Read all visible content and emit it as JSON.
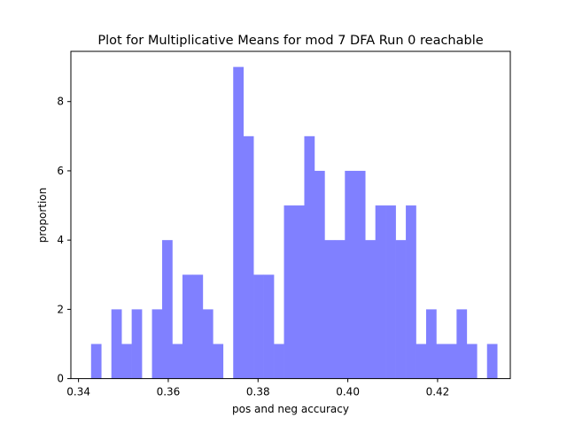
{
  "chart_data": {
    "type": "bar",
    "title": "Plot for Multiplicative Means for  mod 7  DFA Run 0  reachable",
    "xlabel": "pos and neg accuracy",
    "ylabel": "proportion",
    "xlim": [
      0.3383,
      0.4362
    ],
    "ylim": [
      0,
      9.45
    ],
    "x_ticks": [
      0.34,
      0.36,
      0.38,
      0.4,
      0.42
    ],
    "x_tick_labels": [
      "0.34",
      "0.36",
      "0.38",
      "0.40",
      "0.42"
    ],
    "y_ticks": [
      0,
      2,
      4,
      6,
      8
    ],
    "y_tick_labels": [
      "0",
      "2",
      "4",
      "6",
      "8"
    ],
    "bar_color": "#8080ff",
    "bin_width": 0.002262,
    "bin_start": 0.3428,
    "values": [
      1,
      0,
      2,
      1,
      2,
      0,
      2,
      4,
      1,
      3,
      3,
      2,
      1,
      0,
      9,
      7,
      3,
      3,
      1,
      5,
      5,
      7,
      6,
      4,
      4,
      6,
      6,
      4,
      5,
      5,
      4,
      5,
      1,
      2,
      1,
      1,
      2,
      1,
      0,
      1
    ]
  }
}
